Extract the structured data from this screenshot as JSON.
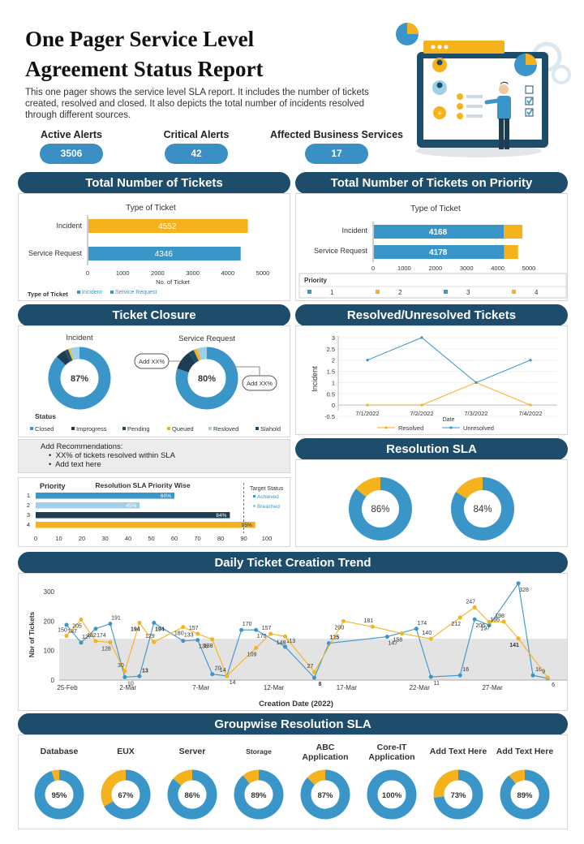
{
  "page": {
    "title_line1": "One Pager Service Level",
    "title_line2": "Agreement Status Report",
    "intro": "This one pager shows the service level SLA report. It includes the number of tickets created, resolved and closed. It also depicts the total number of incidents resolved through different sources."
  },
  "alerts": [
    {
      "label": "Active Alerts",
      "value": "3506"
    },
    {
      "label": "Critical Alerts",
      "value": "42"
    },
    {
      "label": "Affected Business  Services",
      "value": "17"
    }
  ],
  "headers": {
    "total_tickets": "Total Number of Tickets",
    "tickets_priority": "Total Number of Tickets on Priority",
    "ticket_closure": "Ticket Closure",
    "resolved_unresolved": "Resolved/Unresolved Tickets",
    "resolution_sla": "Resolution SLA",
    "daily_trend": "Daily Ticket Creation Trend",
    "groupwise": "Groupwise Resolution SLA"
  },
  "recommendations": {
    "title": "Add Recommendations:",
    "items": [
      "XX%  of tickets  resolved within SLA",
      "Add text here"
    ]
  },
  "colors": {
    "navy": "#1e4d6b",
    "blue": "#3a96c9",
    "orange": "#f5b21d",
    "light_blue": "#9fd0e8",
    "dark": "#1e3d52",
    "grey": "#a8b8c4"
  },
  "chart_data": [
    {
      "id": "total_tickets",
      "type": "bar",
      "title": "Type of Ticket",
      "categories": [
        "Incident",
        "Service Request"
      ],
      "values": [
        4552,
        4346
      ],
      "bar_colors": [
        "#f5b21d",
        "#3a96c9"
      ],
      "xlabel": "No. of Ticket",
      "xlim": [
        0,
        5000
      ],
      "xticks": [
        0,
        1000,
        2000,
        3000,
        4000,
        5000
      ],
      "legend_title": "Type of Ticket",
      "legend": [
        "Incident",
        "Service Request"
      ]
    },
    {
      "id": "tickets_priority",
      "type": "bar",
      "title": "Type of Ticket",
      "categories": [
        "Incident",
        "Service Request"
      ],
      "values": [
        4168,
        4178
      ],
      "stack_extra": [
        600,
        450
      ],
      "xlim": [
        0,
        5000
      ],
      "xticks": [
        0,
        1000,
        2000,
        3000,
        4000,
        5000
      ],
      "legend_title": "Priority",
      "legend": [
        "1",
        "2",
        "3",
        "4"
      ]
    },
    {
      "id": "ticket_closure",
      "type": "pie",
      "charts": [
        {
          "title": "Incident",
          "center": "87%",
          "slices": [
            87,
            5,
            2,
            1,
            5
          ]
        },
        {
          "title": "Service Request",
          "center": "80%",
          "slices": [
            80,
            10,
            3,
            2,
            5
          ]
        }
      ],
      "slice_colors": [
        "#3a96c9",
        "#1e3d52",
        "#1e4d6b",
        "#f5b21d",
        "#9fd0e8"
      ],
      "callouts": [
        "Add XX%",
        "Add XX%"
      ],
      "legend_title": "Status",
      "legend": [
        "Closed",
        "Improgress",
        "Pending",
        "Queued",
        "Resloved",
        "Slahold"
      ],
      "legend_colors": [
        "#3a96c9",
        "#1e3d52",
        "#1e4d6b",
        "#f5b21d",
        "#9fd0e8",
        "#1e4d6b"
      ]
    },
    {
      "id": "resolved_unresolved",
      "type": "line",
      "categories": [
        "7/1/2022",
        "7/2/2022",
        "7/3/2022",
        "7/4/2022"
      ],
      "series": [
        {
          "name": "Resolved",
          "values": [
            0,
            0,
            1,
            0
          ],
          "color": "#f5b21d"
        },
        {
          "name": "Unresolved",
          "values": [
            2,
            3,
            1,
            2
          ],
          "color": "#3a96c9"
        }
      ],
      "ylabel": "Incident",
      "xlabel": "Date",
      "ylim": [
        -0.5,
        3
      ],
      "yticks": [
        -0.5,
        0,
        0.5,
        1,
        1.5,
        2,
        2.5,
        3
      ],
      "ytick_labels": [
        "-0.5",
        "0",
        "0.5",
        "1",
        "1.5",
        "2",
        "2.5",
        "3"
      ]
    },
    {
      "id": "sla_priority",
      "type": "bar",
      "title": "Resolution SLA Priority Wise",
      "axis_title": "Priority",
      "categories": [
        "1",
        "2",
        "3",
        "4"
      ],
      "values": [
        60,
        45,
        84,
        95
      ],
      "value_labels": [
        "60%",
        "45%",
        "84%",
        "95%"
      ],
      "bar_colors": [
        "#3a96c9",
        "#9fd0e8",
        "#1e3d52",
        "#f5b21d"
      ],
      "xlim": [
        0,
        100
      ],
      "xticks": [
        0,
        10,
        20,
        30,
        40,
        50,
        60,
        70,
        80,
        90,
        100
      ],
      "target": 90,
      "legend_title": "Target Status",
      "legend": [
        "Achieved",
        "Breached"
      ]
    },
    {
      "id": "resolution_sla",
      "type": "pie",
      "charts": [
        {
          "center": "86%",
          "value": 86
        },
        {
          "center": "84%",
          "value": 84
        }
      ]
    },
    {
      "id": "daily_trend",
      "type": "line",
      "ylabel": "Nbr of Tickets",
      "xlabel": "Creation Date (2022)",
      "ylim": [
        0,
        300
      ],
      "yticks": [
        0,
        100,
        200,
        300
      ],
      "x_count": 38,
      "x_labels": [
        {
          "i": 0,
          "text": "25-Feb"
        },
        {
          "i": 5,
          "text": "2-Mar"
        },
        {
          "i": 10,
          "text": "7-Mar"
        },
        {
          "i": 15,
          "text": "12-Mar"
        },
        {
          "i": 20,
          "text": "17-Mar"
        },
        {
          "i": 25,
          "text": "22-Mar"
        },
        {
          "i": 30,
          "text": "27-Mar"
        }
      ],
      "band": [
        0,
        140
      ],
      "series": [
        {
          "name": "Blue",
          "color": "#3a96c9",
          "values": [
            187,
            127,
            174,
            191,
            10,
            13,
            194,
            133,
            136,
            20,
            14,
            170,
            170,
            113,
            8,
            125,
            147,
            174,
            11,
            16,
            206,
            186,
            328,
            16,
            6
          ]
        },
        {
          "name": "Orange",
          "color": "#f5b21d",
          "values": [
            150,
            205,
            132,
            128,
            30,
            194,
            129,
            180,
            157,
            138,
            14,
            109,
            157,
            148,
            27,
            200,
            181,
            158,
            140,
            212,
            247,
            197,
            198,
            141,
            9
          ]
        }
      ],
      "blue_x": [
        0,
        1,
        2,
        3,
        4,
        5,
        6,
        8,
        9,
        10,
        11,
        12,
        13,
        15,
        17,
        18,
        22,
        24,
        25,
        27,
        28,
        29,
        31,
        32,
        33
      ],
      "orange_x": [
        0,
        1,
        2,
        3,
        4,
        5,
        6,
        8,
        9,
        10,
        11,
        13,
        14,
        15,
        17,
        19,
        21,
        23,
        25,
        27,
        28,
        29,
        30,
        31,
        33
      ]
    },
    {
      "id": "groupwise_sla",
      "type": "pie",
      "charts": [
        {
          "title": "Database",
          "center": "95%",
          "value": 95
        },
        {
          "title": "EUX",
          "center": "67%",
          "value": 67
        },
        {
          "title": "Server",
          "center": "86%",
          "value": 86
        },
        {
          "title": "Storage",
          "center": "89%",
          "value": 89
        },
        {
          "title": "ABC\nApplication",
          "center": "87%",
          "value": 87
        },
        {
          "title": "Core-IT\nApplication",
          "center": "100%",
          "value": 100
        },
        {
          "title": "Add Text Here",
          "center": "73%",
          "value": 73
        },
        {
          "title": "Add Text Here",
          "center": "89%",
          "value": 89
        }
      ]
    }
  ]
}
